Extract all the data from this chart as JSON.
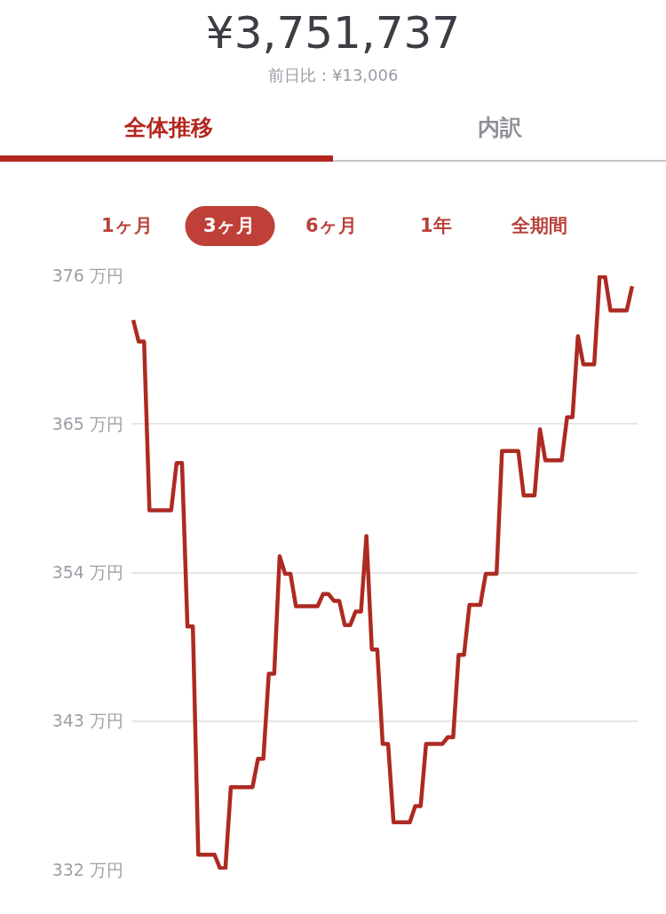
{
  "chart_data": {
    "type": "line",
    "title": "¥3,751,737",
    "subtitle": "前日比：¥13,006",
    "annotations": [
      "全体推移",
      "内訳",
      "1ヶ月",
      "3ヶ月",
      "6ヶ月",
      "1年",
      "全期間"
    ],
    "categories": [
      null,
      null,
      null,
      null,
      null,
      null,
      null,
      null,
      null,
      null,
      null,
      null,
      null,
      null,
      null,
      null,
      null,
      null,
      null,
      null,
      null,
      null,
      null,
      null,
      null,
      null,
      null,
      null,
      null,
      null,
      null,
      null,
      null,
      null,
      null,
      null,
      null,
      null,
      null,
      null,
      null,
      null,
      null,
      null,
      null,
      null,
      null,
      null,
      null,
      null,
      null,
      null,
      null,
      null,
      null,
      null,
      null,
      null,
      null,
      null,
      null,
      null,
      null,
      null,
      null,
      null,
      null,
      null,
      null,
      null,
      null,
      null,
      null,
      null,
      null,
      null,
      null,
      null,
      null,
      null,
      null,
      null,
      null,
      null,
      null,
      null,
      null,
      null,
      null,
      null,
      null,
      null,
      null
    ],
    "values": [
      372.7,
      371.1,
      371.1,
      358.6,
      358.6,
      358.6,
      358.6,
      358.6,
      362.1,
      362.1,
      350.0,
      350.0,
      333.1,
      333.1,
      333.1,
      333.1,
      332.1,
      332.1,
      338.1,
      338.1,
      338.1,
      338.1,
      338.1,
      340.2,
      340.2,
      346.5,
      346.5,
      355.2,
      353.9,
      353.9,
      351.5,
      351.5,
      351.5,
      351.5,
      351.5,
      352.4,
      352.4,
      351.9,
      351.9,
      350.1,
      350.1,
      351.1,
      351.1,
      356.7,
      348.3,
      348.3,
      341.3,
      341.3,
      335.5,
      335.5,
      335.5,
      335.5,
      336.7,
      336.7,
      341.3,
      341.3,
      341.3,
      341.3,
      341.8,
      341.8,
      347.9,
      347.9,
      351.6,
      351.6,
      351.6,
      353.9,
      353.9,
      353.9,
      363.0,
      363.0,
      363.0,
      363.0,
      359.7,
      359.7,
      359.7,
      364.6,
      362.3,
      362.3,
      362.3,
      362.3,
      365.5,
      365.5,
      371.5,
      369.4,
      369.4,
      369.4,
      375.9,
      375.9,
      373.4,
      373.4,
      373.4,
      373.4,
      375.2
    ],
    "color": "#ad2a22",
    "ylim": [
      332,
      376
    ],
    "yticks": [
      {
        "value": 332,
        "label": "332 万円"
      },
      {
        "value": 343,
        "label": "343 万円"
      },
      {
        "value": 354,
        "label": "354 万円"
      },
      {
        "value": 365,
        "label": "365 万円"
      },
      {
        "value": 376,
        "label": "376 万円"
      }
    ],
    "grid": "y",
    "tick_labels": "y",
    "line_style": "solid"
  }
}
